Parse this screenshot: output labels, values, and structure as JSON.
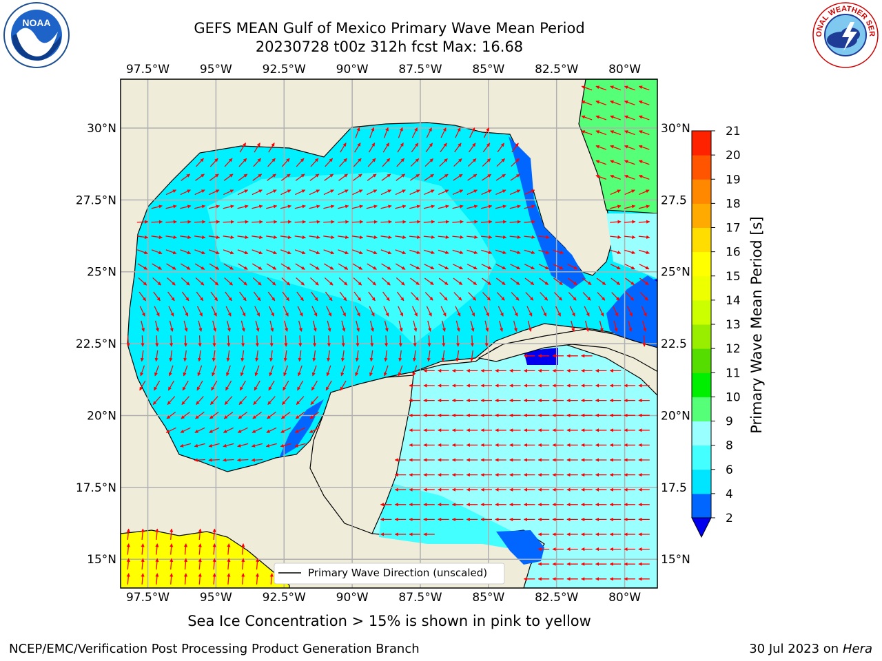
{
  "header": {
    "title_line1": "GEFS MEAN Gulf of Mexico Primary Wave Mean Period",
    "title_line2": "20230728 t00z 312h fcst   Max: 16.68"
  },
  "logos": {
    "left": {
      "icon": "noaa-logo-icon",
      "text": "NOAA"
    },
    "right": {
      "icon": "nws-logo-icon",
      "text": "NATIONAL WEATHER SERVICE"
    }
  },
  "map": {
    "lon_range": [
      -98.5,
      -78.8
    ],
    "lat_range": [
      14.0,
      31.7
    ],
    "lon_ticks": [
      "97.5°W",
      "95°W",
      "92.5°W",
      "90°W",
      "87.5°W",
      "85°W",
      "82.5°W",
      "80°W"
    ],
    "lon_tick_values": [
      -97.5,
      -95,
      -92.5,
      -90,
      -87.5,
      -85,
      -82.5,
      -80
    ],
    "lat_ticks_left": [
      "30°N",
      "27.5°N",
      "25°N",
      "22.5°N",
      "20°N",
      "17.5°N",
      "15°N"
    ],
    "lat_ticks_right": [
      "30°N",
      "27.5",
      "25°N",
      "22.5",
      "20°N",
      "17.5",
      "15°N"
    ],
    "lat_tick_values": [
      30,
      27.5,
      25,
      22.5,
      20,
      17.5,
      15
    ],
    "land_color": "#efedda",
    "grid_color": "#b0b0b0",
    "arrow_color": "#ff0000",
    "legend_label": "Primary Wave Direction (unscaled)"
  },
  "chart_data": {
    "type": "heatmap",
    "variable_label": "Primary Wave Mean Period [s]",
    "max_value": 16.68,
    "colorbar": {
      "levels": [
        2,
        4,
        6,
        8,
        9,
        10,
        11,
        12,
        13,
        14,
        15,
        16,
        17,
        18,
        19,
        20,
        21
      ],
      "tick_labels": [
        "2",
        "4",
        "6",
        "8",
        "9",
        "10",
        "11",
        "12",
        "13",
        "14",
        "15",
        "16",
        "17",
        "18",
        "19",
        "20",
        "21"
      ],
      "colors": [
        "#0066ff",
        "#00e5ff",
        "#44ffff",
        "#99ffff",
        "#55ff77",
        "#00ee00",
        "#55dd00",
        "#99ee00",
        "#ccff00",
        "#eeff00",
        "#ffff00",
        "#ffdd00",
        "#ffaa00",
        "#ff8800",
        "#ff5500",
        "#ff2200"
      ],
      "under_color": "#0000ee"
    }
  },
  "caption": "Sea Ice Concentration > 15% is shown in pink to yellow",
  "footer": {
    "left": "NCEP/EMC/Verification Post Processing Product Generation Branch",
    "right_date": "30 Jul 2023 on ",
    "right_host": "Hera"
  }
}
